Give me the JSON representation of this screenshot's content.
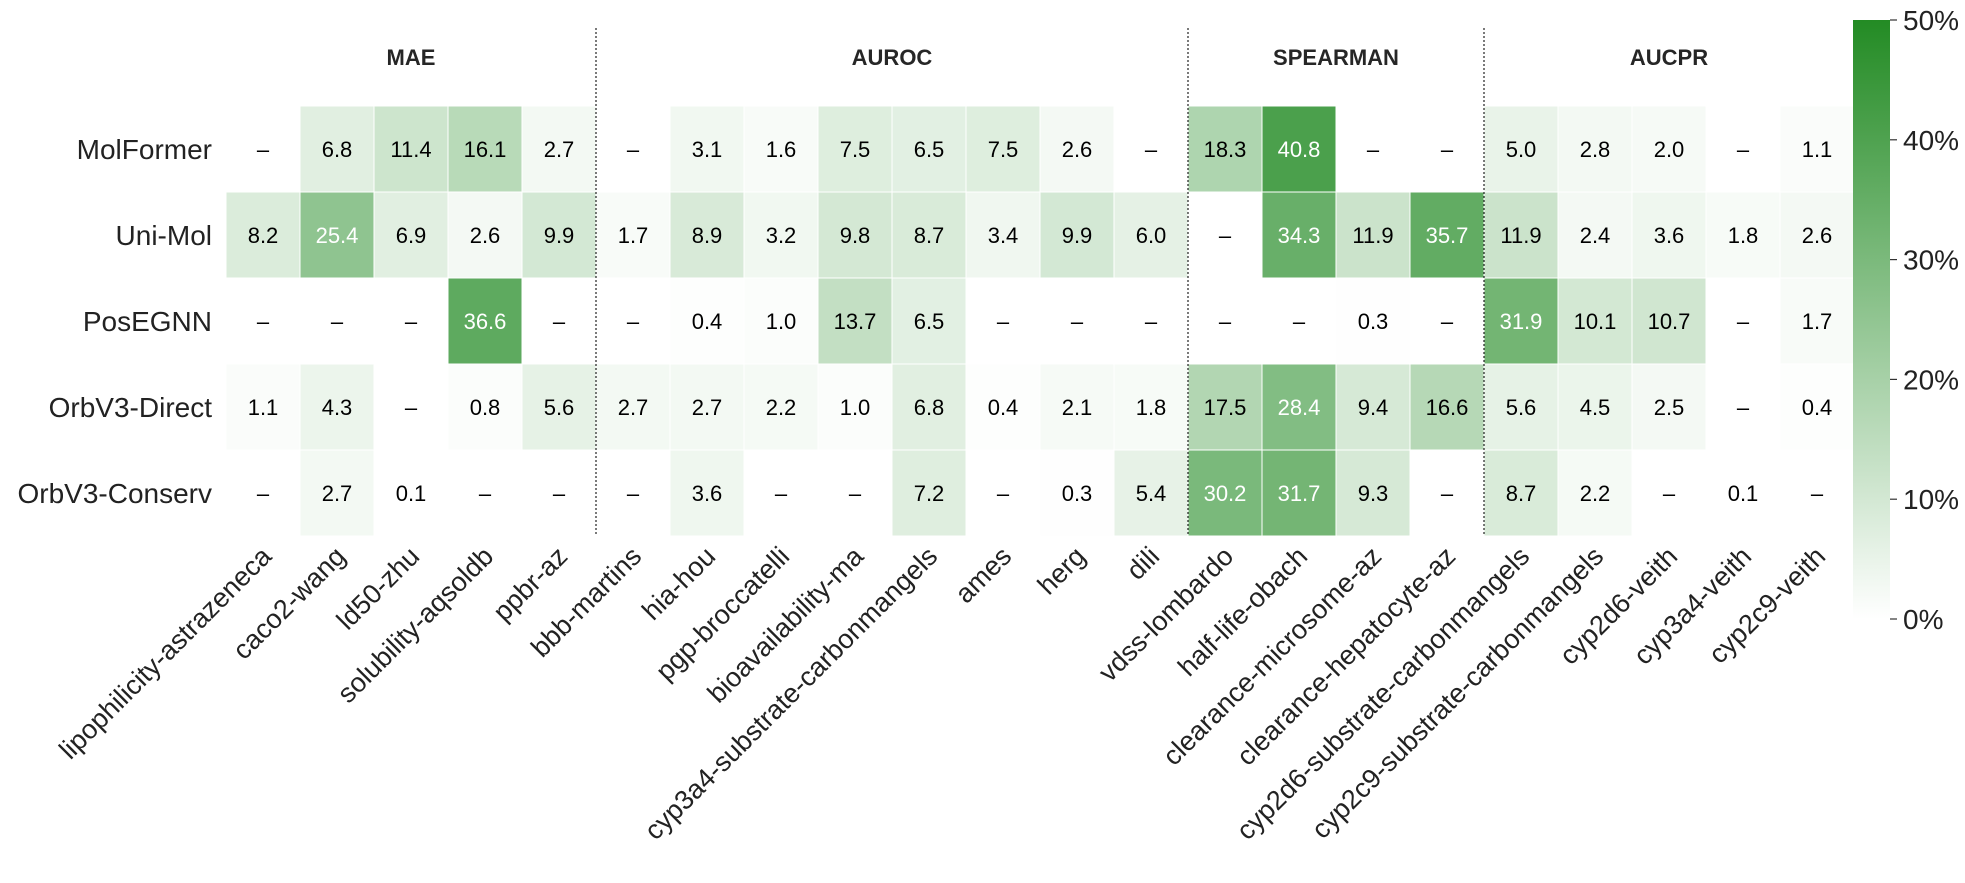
{
  "chart_data": {
    "type": "heatmap",
    "title": "",
    "xlabel": "",
    "ylabel": "",
    "rows": [
      "MolFormer",
      "Uni-Mol",
      "PosEGNN",
      "OrbV3-Direct",
      "OrbV3-Conserv"
    ],
    "columns": [
      "lipophilicity-astrazeneca",
      "caco2-wang",
      "ld50-zhu",
      "solubility-aqsoldb",
      "ppbr-az",
      "bbb-martins",
      "hia-hou",
      "pgp-broccatelli",
      "bioavailability-ma",
      "cyp3a4-substrate-carbonmangels",
      "ames",
      "herg",
      "dili",
      "vdss-lombardo",
      "half-life-obach",
      "clearance-microsome-az",
      "clearance-hepatocyte-az",
      "cyp2d6-substrate-carbonmangels",
      "cyp2c9-substrate-carbonmangels",
      "cyp2d6-veith",
      "cyp3a4-veith",
      "cyp2c9-veith"
    ],
    "groups": [
      {
        "label": "MAE",
        "start": 0,
        "end": 4
      },
      {
        "label": "AUROC",
        "start": 5,
        "end": 12
      },
      {
        "label": "SPEARMAN",
        "start": 13,
        "end": 16
      },
      {
        "label": "AUCPR",
        "start": 17,
        "end": 21
      }
    ],
    "values": [
      [
        null,
        6.8,
        11.4,
        16.1,
        2.7,
        null,
        3.1,
        1.6,
        7.5,
        6.5,
        7.5,
        2.6,
        null,
        18.3,
        40.8,
        null,
        null,
        5.0,
        2.8,
        2.0,
        null,
        1.1
      ],
      [
        8.2,
        25.4,
        6.9,
        2.6,
        9.9,
        1.7,
        8.9,
        3.2,
        9.8,
        8.7,
        3.4,
        9.9,
        6.0,
        null,
        34.3,
        11.9,
        35.7,
        11.9,
        2.4,
        3.6,
        1.8,
        2.6
      ],
      [
        null,
        null,
        null,
        36.6,
        null,
        null,
        0.4,
        1.0,
        13.7,
        6.5,
        null,
        null,
        null,
        null,
        null,
        0.3,
        null,
        31.9,
        10.1,
        10.7,
        null,
        1.7
      ],
      [
        1.1,
        4.3,
        null,
        0.8,
        5.6,
        2.7,
        2.7,
        2.2,
        1.0,
        6.8,
        0.4,
        2.1,
        1.8,
        17.5,
        28.4,
        9.4,
        16.6,
        5.6,
        4.5,
        2.5,
        null,
        0.4
      ],
      [
        null,
        2.7,
        0.1,
        null,
        null,
        null,
        3.6,
        null,
        null,
        7.2,
        null,
        0.3,
        5.4,
        30.2,
        31.7,
        9.3,
        null,
        8.7,
        2.2,
        null,
        0.1,
        null
      ]
    ],
    "missing_label": "–",
    "colorbar": {
      "min": 0,
      "max": 50,
      "ticks": [
        "0%",
        "10%",
        "20%",
        "30%",
        "40%",
        "50%"
      ],
      "color_low": "#ffffff",
      "color_high": "#238b24"
    },
    "text_color_dark": "#000000",
    "text_color_light": "#ffffff"
  }
}
